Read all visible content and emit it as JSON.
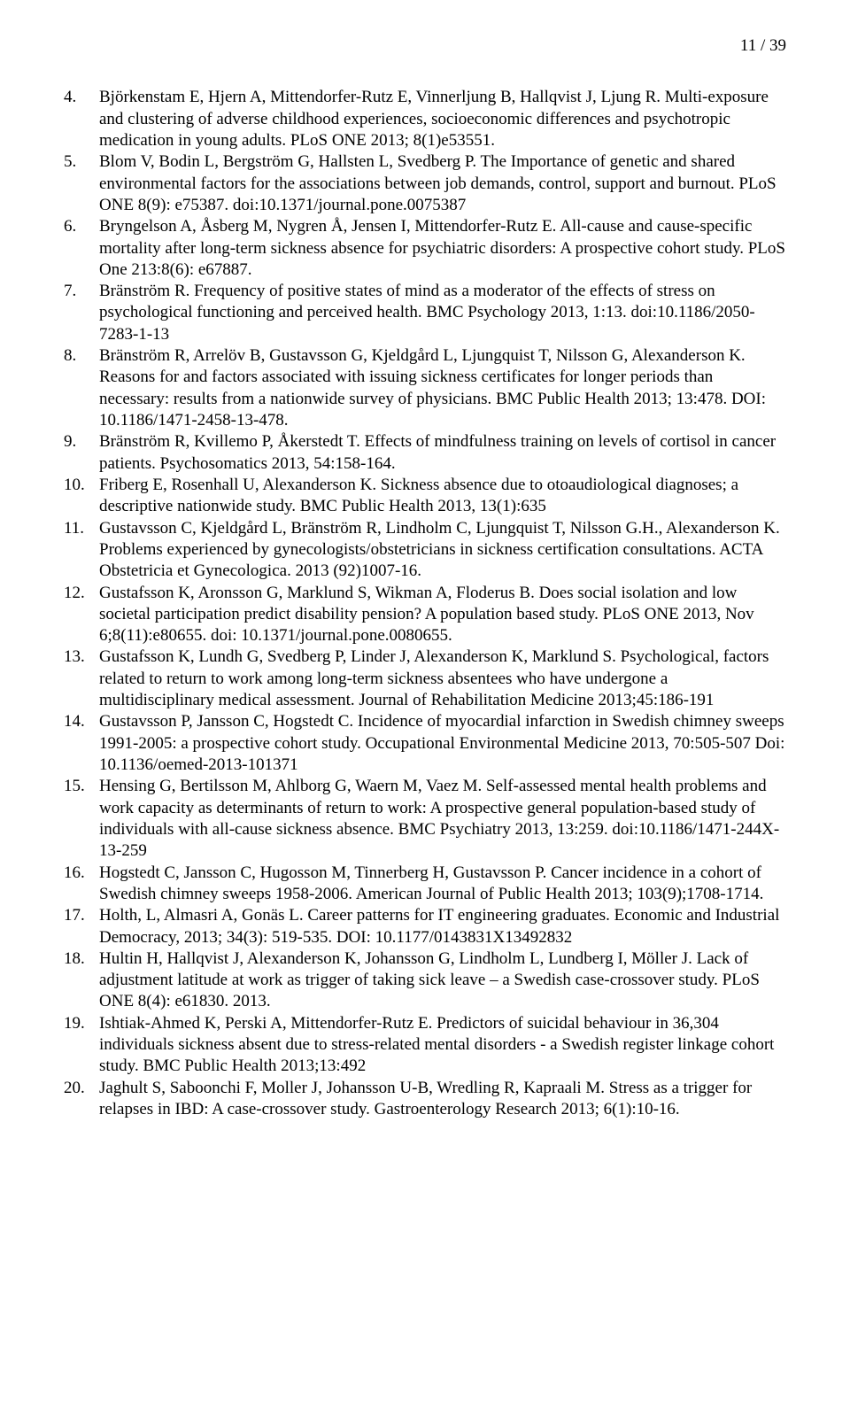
{
  "page_number": "11 / 39",
  "references": [
    {
      "num": "4.",
      "text": "Björkenstam E, Hjern A, Mittendorfer-Rutz E, Vinnerljung B, Hallqvist J, Ljung R. Multi-exposure and clustering of adverse childhood experiences, socioeconomic differences and psychotropic medication in young adults. PLoS ONE 2013; 8(1)e53551."
    },
    {
      "num": "5.",
      "text": "Blom V, Bodin L, Bergström G, Hallsten L, Svedberg P. The Importance of genetic and shared environmental factors for the associations between job demands, control, support and burnout. PLoS ONE 8(9): e75387. doi:10.1371/journal.pone.0075387"
    },
    {
      "num": "6.",
      "text": "Bryngelson A, Åsberg M, Nygren Å, Jensen I, Mittendorfer-Rutz E. All-cause and cause-specific mortality after long-term sickness absence for psychiatric disorders: A prospective cohort study. PLoS One 213:8(6): e67887."
    },
    {
      "num": "7.",
      "text": "Bränström R. Frequency of positive states of mind as a moderator of the effects of stress on psychological functioning and perceived health. BMC Psychology 2013, 1:13. doi:10.1186/2050-7283-1-13"
    },
    {
      "num": "8.",
      "text": "Bränström R, Arrelöv B, Gustavsson G, Kjeldgård L, Ljungquist T, Nilsson G, Alexanderson K. Reasons for and factors associated with issuing sickness certificates for longer periods than necessary: results from a nationwide survey of physicians. BMC Public Health 2013; 13:478. DOI: 10.1186/1471-2458-13-478."
    },
    {
      "num": "9.",
      "text": "Bränström R, Kvillemo P, Åkerstedt T. Effects of mindfulness training on levels of cortisol in cancer patients. Psychosomatics 2013, 54:158-164."
    },
    {
      "num": "10.",
      "text": "Friberg E, Rosenhall U, Alexanderson K. Sickness absence due to otoaudiological diagnoses; a descriptive nationwide study. BMC Public Health 2013, 13(1):635"
    },
    {
      "num": "11.",
      "text": "Gustavsson C, Kjeldgård L, Bränström R, Lindholm C, Ljungquist T, Nilsson G.H., Alexanderson K. Problems experienced by gynecologists/obstetricians in sickness certification consultations. ACTA Obstetricia et Gynecologica. 2013 (92)1007-16."
    },
    {
      "num": "12.",
      "text": "Gustafsson K, Aronsson G, Marklund S, Wikman A, Floderus B. Does social isolation and low societal participation predict disability pension? A population based study. PLoS ONE 2013, Nov 6;8(11):e80655. doi: 10.1371/journal.pone.0080655."
    },
    {
      "num": "13.",
      "text": "Gustafsson K, Lundh G, Svedberg P, Linder J, Alexanderson K, Marklund S. Psychological, factors related to return to work among long-term sickness absentees who have undergone a multidisciplinary medical assessment. Journal of Rehabilitation Medicine 2013;45:186-191"
    },
    {
      "num": "14.",
      "text": "Gustavsson P, Jansson C, Hogstedt C.  Incidence of myocardial infarction in Swedish chimney sweeps 1991-2005: a prospective cohort study. Occupational Environmental Medicine 2013, 70:505-507 Doi: 10.1136/oemed-2013-101371"
    },
    {
      "num": "15.",
      "text": "Hensing G, Bertilsson M, Ahlborg G, Waern M, Vaez M. Self-assessed mental health problems and work capacity as determinants of return to work: A prospective general population-based study of individuals with all-cause sickness absence. BMC Psychiatry 2013, 13:259. doi:10.1186/1471-244X-13-259"
    },
    {
      "num": "16.",
      "text": "Hogstedt C, Jansson C, Hugosson M, Tinnerberg H, Gustavsson P. Cancer incidence in a cohort of Swedish chimney sweeps 1958-2006. American Journal of Public Health 2013; 103(9);1708-1714."
    },
    {
      "num": "17.",
      "text": "Holth, L, Almasri A, Gonäs L. Career patterns for IT engineering graduates. Economic and Industrial Democracy, 2013; 34(3): 519-535. DOI: 10.1177/0143831X13492832"
    },
    {
      "num": "18.",
      "text": "Hultin H, Hallqvist J, Alexanderson K, Johansson G, Lindholm L, Lundberg I, Möller J. Lack of adjustment latitude at work as trigger of taking sick leave – a Swedish case-crossover study. PLoS ONE 8(4): e61830. 2013."
    },
    {
      "num": "19.",
      "text": "Ishtiak-Ahmed K, Perski A, Mittendorfer-Rutz E. Predictors of suicidal behaviour in 36,304 individuals sickness absent due to stress-related mental disorders - a Swedish register linkage cohort study. BMC Public Health 2013;13:492"
    },
    {
      "num": "20.",
      "text": "Jaghult S, Saboonchi F, Moller J, Johansson U-B, Wredling R, Kapraali M. Stress as a trigger for relapses in IBD: A case-crossover study. Gastroenterology Research 2013; 6(1):10-16."
    }
  ]
}
